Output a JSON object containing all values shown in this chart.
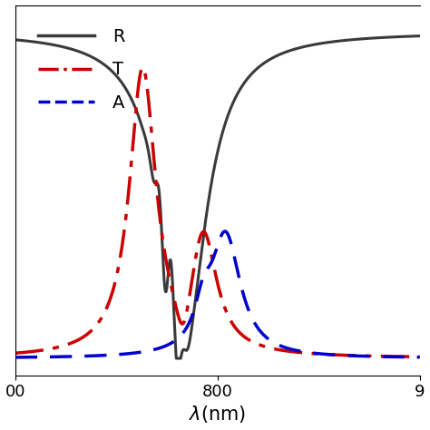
{
  "title": "",
  "xlabel": "λ(nm)",
  "ylabel": "",
  "xlim": [
    700,
    900
  ],
  "ylim": [
    -0.05,
    1.05
  ],
  "background_color": "#ffffff",
  "R_color": "#3a3a3a",
  "T_color": "#cc0000",
  "A_color": "#0000cc",
  "line_width": 2.2,
  "legend_fontsize": 14,
  "lam0": 783.0,
  "R_width": 13.0,
  "R_base": 0.97
}
